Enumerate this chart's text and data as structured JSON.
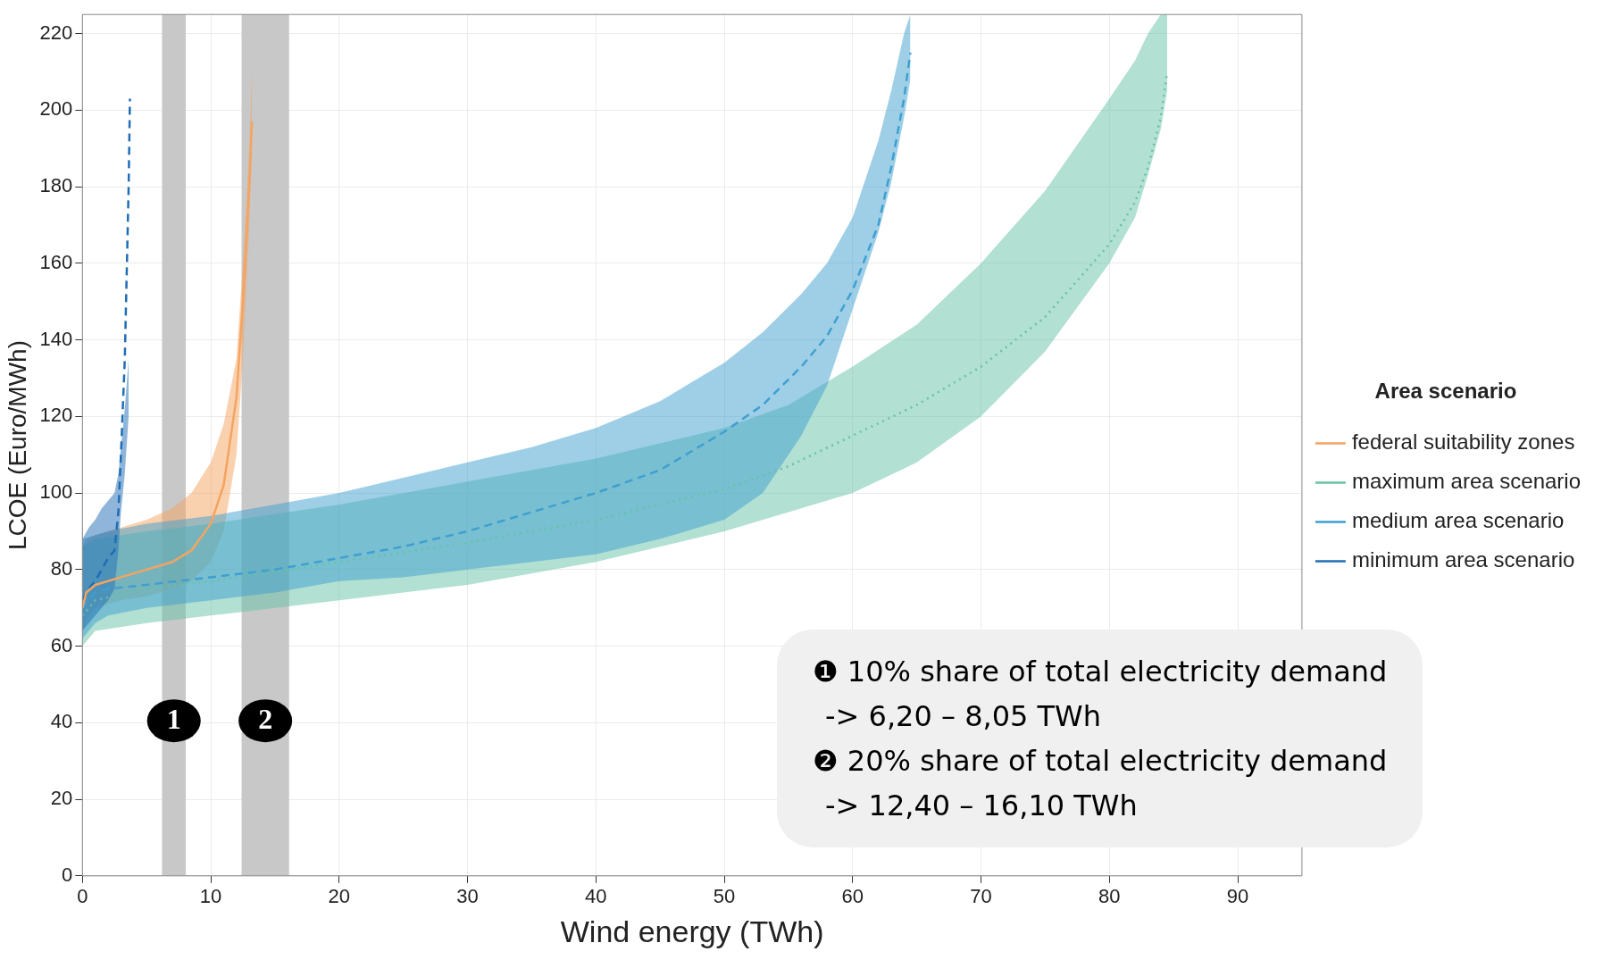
{
  "chart_data": {
    "type": "line",
    "xlabel": "Wind energy (TWh)",
    "ylabel": "LCOE (Euro/MWh)",
    "legend_title": "Area scenario",
    "legend": "right",
    "grid": true,
    "xlim": [
      0,
      95
    ],
    "xticks": [
      0,
      10,
      20,
      30,
      40,
      50,
      60,
      70,
      80,
      90
    ],
    "ylim": [
      0,
      225
    ],
    "yticks": [
      0,
      20,
      40,
      60,
      80,
      100,
      120,
      140,
      160,
      180,
      200,
      220
    ],
    "bands": [
      {
        "axis": "x",
        "from": 6.2,
        "to": 8.05,
        "label": "1",
        "color": "#c8c8c8"
      },
      {
        "axis": "x",
        "from": 12.4,
        "to": 16.1,
        "label": "2",
        "color": "#c8c8c8"
      }
    ],
    "annotations": [
      "❶ 10% share of total electricity demand",
      "->   6,20 –   8,05 TWh",
      "❷ 20% share of total electricity demand",
      "-> 12,40 – 16,10 TWh"
    ],
    "series": [
      {
        "name": "federal suitability zones",
        "color": "#f4a460",
        "line_style": "solid",
        "x": [
          0,
          0.3,
          1,
          3,
          5,
          7,
          8.5,
          10,
          11,
          12,
          12.5,
          13,
          13.2
        ],
        "values": [
          70,
          74,
          76,
          78,
          80,
          82,
          85,
          92,
          102,
          125,
          150,
          180,
          197
        ],
        "lower": [
          64,
          67,
          70,
          72,
          73,
          75,
          77,
          82,
          90,
          110,
          135,
          170,
          190
        ],
        "upper": [
          86,
          88,
          89,
          91,
          93,
          96,
          100,
          108,
          118,
          135,
          160,
          190,
          210
        ]
      },
      {
        "name": "maximum area scenario",
        "color": "#66c2a5",
        "line_style": "dotted",
        "x": [
          0,
          1,
          5,
          10,
          20,
          30,
          40,
          50,
          55,
          60,
          65,
          70,
          75,
          80,
          82,
          83,
          84,
          84.5
        ],
        "values": [
          68,
          72,
          75,
          77,
          82,
          87,
          93,
          101,
          107,
          115,
          123,
          133,
          146,
          165,
          176,
          185,
          198,
          210
        ],
        "lower": [
          60,
          64,
          66,
          68,
          72,
          76,
          82,
          90,
          95,
          100,
          108,
          120,
          137,
          160,
          172,
          183,
          195,
          205
        ],
        "upper": [
          86,
          88,
          90,
          92,
          97,
          103,
          109,
          117,
          123,
          133,
          144,
          160,
          179,
          203,
          213,
          220,
          225,
          225
        ]
      },
      {
        "name": "medium area scenario",
        "color": "#3e9fd0",
        "line_style": "dashed",
        "x": [
          0,
          1,
          2,
          5,
          10,
          15,
          20,
          25,
          30,
          35,
          40,
          45,
          50,
          53,
          56,
          58,
          60,
          62,
          63,
          64,
          64.5
        ],
        "values": [
          70,
          74,
          75,
          76,
          78,
          80,
          83,
          86,
          90,
          95,
          100,
          106,
          116,
          123,
          133,
          141,
          153,
          170,
          185,
          203,
          215
        ],
        "lower": [
          62,
          66,
          68,
          70,
          72,
          74,
          77,
          78,
          80,
          82,
          84,
          88,
          93,
          100,
          115,
          128,
          148,
          168,
          181,
          198,
          208
        ],
        "upper": [
          88,
          89,
          90,
          92,
          94,
          97,
          100,
          104,
          108,
          112,
          117,
          124,
          134,
          142,
          152,
          160,
          172,
          192,
          205,
          220,
          225
        ]
      },
      {
        "name": "minimum area scenario",
        "color": "#1f6db5",
        "line_style": "dashed",
        "x": [
          0,
          0.5,
          1,
          1.5,
          2,
          2.5,
          2.8,
          3,
          3.3,
          3.6,
          3.7
        ],
        "values": [
          72,
          75,
          77,
          80,
          83,
          85,
          95,
          110,
          135,
          180,
          203
        ],
        "lower": [
          64,
          66,
          68,
          70,
          72,
          75,
          85,
          95,
          105,
          120,
          null
        ],
        "upper": [
          88,
          91,
          93,
          96,
          98,
          100,
          105,
          112,
          122,
          135,
          null
        ]
      }
    ]
  }
}
